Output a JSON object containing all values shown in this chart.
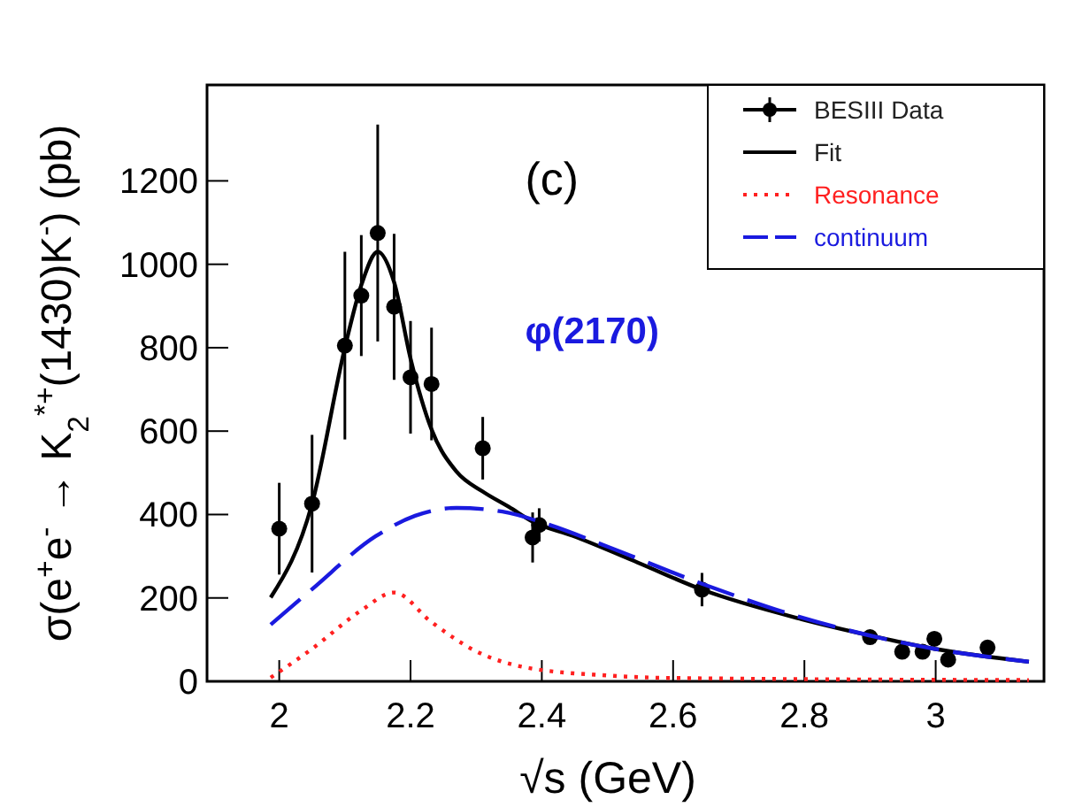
{
  "chart_data": {
    "type": "scatter",
    "xlabel": "√s (GeV)",
    "ylabel": "σ(e$^{+}$e$^{-}$ → K$_{2}$$^{*+}$(1430)K$^{-}$) (pb)",
    "annotations": [
      "(c)",
      "φ(2170)"
    ],
    "xlim": [
      1.89,
      3.165
    ],
    "ylim": [
      0,
      1430
    ],
    "xticks": [
      {
        "value": 2,
        "label": "2"
      },
      {
        "value": 2.2,
        "label": "2.2"
      },
      {
        "value": 2.4,
        "label": "2.4"
      },
      {
        "value": 2.6,
        "label": "2.6"
      },
      {
        "value": 2.8,
        "label": "2.8"
      },
      {
        "value": 3,
        "label": "3"
      }
    ],
    "yticks": [
      0,
      200,
      400,
      600,
      800,
      1000,
      1200
    ],
    "legend": "top right",
    "grid": false,
    "series": [
      {
        "name": "BESIII Data",
        "color": "#000000",
        "marker": "circle",
        "x": [
          2.0,
          2.05,
          2.1,
          2.125,
          2.15,
          2.175,
          2.2,
          2.232,
          2.31,
          2.386,
          2.396,
          2.644,
          2.9,
          2.949,
          2.98,
          2.998,
          3.019,
          3.079
        ],
        "values": [
          366,
          426,
          805,
          925,
          1075,
          898,
          729,
          713,
          559,
          345,
          375,
          220,
          106,
          71,
          71,
          102,
          52,
          81
        ],
        "errors": [
          110,
          165,
          225,
          145,
          260,
          175,
          135,
          135,
          75,
          60,
          40,
          40,
          null,
          null,
          null,
          null,
          null,
          null
        ]
      },
      {
        "name": "Fit",
        "type": "line",
        "color": "#000000",
        "line_style": "solid",
        "x": [
          1.987,
          2.05,
          2.1,
          2.125,
          2.15,
          2.175,
          2.2,
          2.232,
          2.27,
          2.31,
          2.35,
          2.386,
          2.447,
          2.546,
          2.644,
          2.796,
          2.9,
          2.998,
          3.142
        ],
        "values": [
          201,
          426,
          800,
          950,
          1030,
          957,
          774,
          604,
          503,
          455,
          418,
          383,
          349,
          285,
          220,
          149,
          110,
          78,
          47
        ]
      },
      {
        "name": "Resonance",
        "type": "line",
        "color": "#ff2020",
        "line_style": "dotted",
        "x": [
          1.987,
          2.05,
          2.125,
          2.175,
          2.232,
          2.3,
          2.37,
          2.5,
          2.6,
          3.142
        ],
        "values": [
          9,
          78,
          170,
          213,
          142,
          72,
          35,
          14,
          8,
          3
        ]
      },
      {
        "name": "continuum",
        "type": "line",
        "color": "#1a1adf",
        "line_style": "dashed",
        "x": [
          1.987,
          2.05,
          2.147,
          2.207,
          2.27,
          2.34,
          2.41,
          2.5,
          2.644,
          2.796,
          2.998,
          3.142
        ],
        "values": [
          136,
          221,
          348,
          397,
          416,
          407,
          376,
          323,
          234,
          153,
          78,
          47
        ]
      }
    ]
  }
}
